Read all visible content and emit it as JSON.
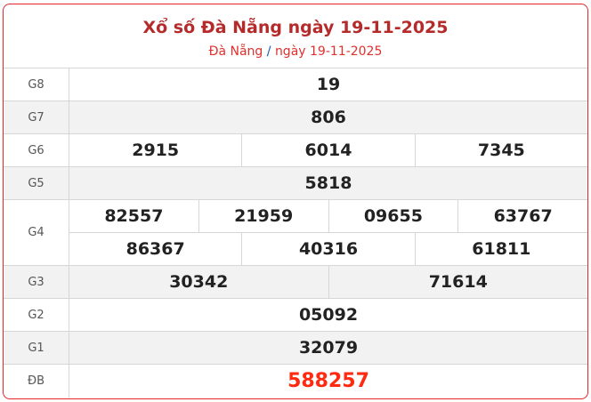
{
  "header": {
    "title": "Xổ số Đà Nẵng ngày 19-11-2025",
    "breadcrumb_region": "Đà Nẵng",
    "breadcrumb_sep": "/",
    "breadcrumb_date": "ngày 19-11-2025"
  },
  "colors": {
    "border": "#e8262a",
    "title": "#b52a2a",
    "special": "#ff2a10"
  },
  "prizes": [
    {
      "label": "G8",
      "lines": [
        [
          "19"
        ]
      ]
    },
    {
      "label": "G7",
      "lines": [
        [
          "806"
        ]
      ]
    },
    {
      "label": "G6",
      "lines": [
        [
          "2915",
          "6014",
          "7345"
        ]
      ]
    },
    {
      "label": "G5",
      "lines": [
        [
          "5818"
        ]
      ]
    },
    {
      "label": "G4",
      "lines": [
        [
          "82557",
          "21959",
          "09655",
          "63767"
        ],
        [
          "86367",
          "40316",
          "61811"
        ]
      ]
    },
    {
      "label": "G3",
      "lines": [
        [
          "30342",
          "71614"
        ]
      ]
    },
    {
      "label": "G2",
      "lines": [
        [
          "05092"
        ]
      ]
    },
    {
      "label": "G1",
      "lines": [
        [
          "32079"
        ]
      ]
    },
    {
      "label": "ĐB",
      "lines": [
        [
          "588257"
        ]
      ]
    }
  ]
}
